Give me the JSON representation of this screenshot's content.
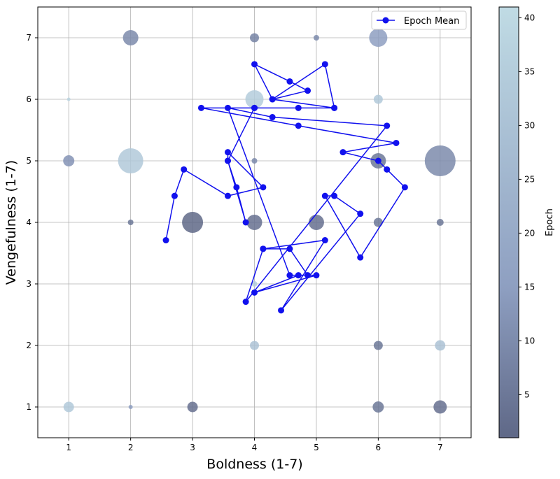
{
  "chart_data": {
    "type": "scatter",
    "xlabel": "Boldness (1-7)",
    "ylabel": "Vengefulness (1-7)",
    "xlim": [
      0.5,
      7.5
    ],
    "ylim": [
      0.5,
      7.5
    ],
    "xticks": [
      "1",
      "2",
      "3",
      "4",
      "5",
      "6",
      "7"
    ],
    "yticks": [
      "1",
      "2",
      "3",
      "4",
      "5",
      "6",
      "7"
    ],
    "grid": true,
    "legend": {
      "position": "top-right",
      "label": "Epoch Mean"
    },
    "colorbar": {
      "label": "Epoch",
      "range": [
        1,
        41
      ],
      "ticks": [
        "5",
        "10",
        "15",
        "20",
        "25",
        "30",
        "35",
        "40"
      ],
      "colors": {
        "low": "#5f6887",
        "mid": "#8e9fc1",
        "high": "#c0dbe4"
      }
    },
    "scatter_points": [
      {
        "x": 2,
        "y": 7,
        "size": 22,
        "epoch": 10
      },
      {
        "x": 4,
        "y": 7,
        "size": 13,
        "epoch": 8
      },
      {
        "x": 5,
        "y": 7,
        "size": 8,
        "epoch": 10
      },
      {
        "x": 6,
        "y": 7,
        "size": 26,
        "epoch": 15
      },
      {
        "x": 1,
        "y": 6,
        "size": 5,
        "epoch": 38
      },
      {
        "x": 4,
        "y": 6,
        "size": 26,
        "epoch": 35
      },
      {
        "x": 6,
        "y": 6,
        "size": 13,
        "epoch": 33
      },
      {
        "x": 1,
        "y": 5,
        "size": 16,
        "epoch": 12
      },
      {
        "x": 2,
        "y": 5,
        "size": 36,
        "epoch": 33
      },
      {
        "x": 4,
        "y": 5,
        "size": 8,
        "epoch": 10
      },
      {
        "x": 6,
        "y": 5,
        "size": 22,
        "epoch": 5
      },
      {
        "x": 7,
        "y": 5,
        "size": 44,
        "epoch": 10
      },
      {
        "x": 2,
        "y": 4,
        "size": 8,
        "epoch": 5
      },
      {
        "x": 3,
        "y": 4,
        "size": 30,
        "epoch": 1
      },
      {
        "x": 4,
        "y": 4,
        "size": 22,
        "epoch": 3
      },
      {
        "x": 5,
        "y": 4,
        "size": 22,
        "epoch": 3
      },
      {
        "x": 6,
        "y": 4,
        "size": 13,
        "epoch": 5
      },
      {
        "x": 7,
        "y": 4,
        "size": 10,
        "epoch": 5
      },
      {
        "x": 4,
        "y": 3,
        "size": 8,
        "epoch": 35
      },
      {
        "x": 4,
        "y": 2,
        "size": 13,
        "epoch": 30
      },
      {
        "x": 6,
        "y": 2,
        "size": 13,
        "epoch": 5
      },
      {
        "x": 7,
        "y": 2,
        "size": 15,
        "epoch": 30
      },
      {
        "x": 1,
        "y": 1,
        "size": 15,
        "epoch": 33
      },
      {
        "x": 2,
        "y": 1,
        "size": 6,
        "epoch": 15
      },
      {
        "x": 3,
        "y": 1,
        "size": 15,
        "epoch": 3
      },
      {
        "x": 6,
        "y": 1,
        "size": 16,
        "epoch": 5
      },
      {
        "x": 7,
        "y": 1,
        "size": 19,
        "epoch": 3
      }
    ],
    "series": [
      {
        "name": "Epoch Mean",
        "color": "#1111ee",
        "points": [
          [
            2.57,
            3.71
          ],
          [
            2.71,
            4.43
          ],
          [
            2.86,
            4.86
          ],
          [
            3.57,
            4.43
          ],
          [
            4.14,
            4.57
          ],
          [
            3.57,
            5.14
          ],
          [
            3.57,
            5.0
          ],
          [
            3.86,
            4.0
          ],
          [
            3.71,
            4.57
          ],
          [
            3.57,
            5.0
          ],
          [
            4.0,
            5.86
          ],
          [
            5.29,
            5.86
          ],
          [
            4.29,
            6.0
          ],
          [
            4.0,
            6.57
          ],
          [
            4.57,
            6.29
          ],
          [
            4.86,
            6.14
          ],
          [
            4.29,
            6.0
          ],
          [
            5.14,
            6.57
          ],
          [
            5.29,
            5.86
          ],
          [
            4.0,
            5.86
          ],
          [
            4.71,
            5.86
          ],
          [
            3.14,
            5.86
          ],
          [
            4.71,
            5.57
          ],
          [
            6.29,
            5.29
          ],
          [
            5.43,
            5.14
          ],
          [
            6.0,
            5.0
          ],
          [
            6.14,
            4.86
          ],
          [
            6.43,
            4.57
          ],
          [
            5.71,
            3.43
          ],
          [
            5.14,
            4.43
          ],
          [
            5.29,
            4.43
          ],
          [
            5.71,
            4.14
          ],
          [
            4.43,
            2.57
          ],
          [
            5.14,
            3.71
          ],
          [
            4.14,
            3.57
          ],
          [
            4.57,
            3.57
          ],
          [
            4.86,
            3.14
          ],
          [
            4.71,
            3.14
          ],
          [
            4.0,
            2.86
          ],
          [
            5.0,
            3.14
          ],
          [
            4.57,
            3.14
          ],
          [
            3.57,
            5.86
          ],
          [
            4.29,
            5.71
          ],
          [
            6.14,
            5.57
          ],
          [
            3.86,
            2.71
          ],
          [
            4.14,
            3.57
          ]
        ]
      }
    ]
  }
}
